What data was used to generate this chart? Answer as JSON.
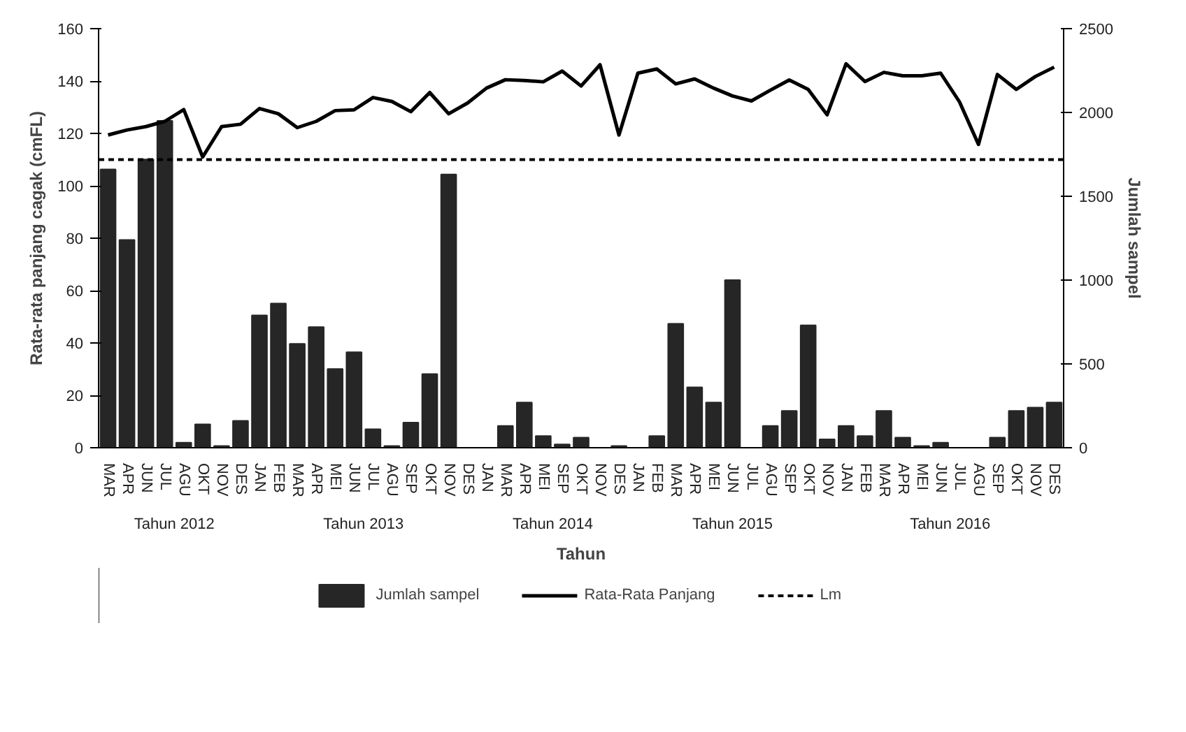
{
  "chart_data": {
    "type": "bar",
    "xlabel": "Tahun",
    "ylabel": "Rata-rata panjang cagak (cmFL)",
    "y2label": "Jumlah sampel",
    "categories": [
      "MAR",
      "APR",
      "JUN",
      "JUL",
      "AGU",
      "OKT",
      "NOV",
      "DES",
      "JAN",
      "FEB",
      "MAR",
      "APR",
      "MEI",
      "JUN",
      "JUL",
      "AGU",
      "SEP",
      "OKT",
      "NOV",
      "DES",
      "JAN",
      "MAR",
      "APR",
      "MEI",
      "SEP",
      "OKT",
      "NOV",
      "DES",
      "JAN",
      "FEB",
      "MAR",
      "APR",
      "MEI",
      "JUN",
      "JUL",
      "AGU",
      "SEP",
      "OKT",
      "NOV",
      "JAN",
      "FEB",
      "MAR",
      "APR",
      "MEI",
      "JUN",
      "JUL",
      "AGU",
      "SEP",
      "OKT",
      "NOV",
      "DES"
    ],
    "series": [
      {
        "name": "Jumlah sampel",
        "axis": "y2",
        "color": "#262626",
        "values": [
          1660,
          1240,
          1720,
          1950,
          30,
          140,
          10,
          160,
          790,
          860,
          620,
          720,
          470,
          570,
          110,
          10,
          150,
          440,
          1630,
          0,
          0,
          130,
          270,
          70,
          20,
          60,
          0,
          10,
          0,
          70,
          740,
          360,
          270,
          1000,
          0,
          130,
          220,
          730,
          50,
          130,
          70,
          220,
          60,
          10,
          30,
          0,
          0,
          60,
          220,
          240,
          270
        ]
      },
      {
        "name": "Rata-Rata Panjang",
        "type": "line",
        "color": "#000000",
        "values": [
          119.4,
          121.3,
          122.6,
          124.6,
          129.1,
          111,
          122.6,
          123.5,
          129.5,
          127.5,
          122.2,
          124.6,
          128.7,
          129,
          133.7,
          132.2,
          128.3,
          135.6,
          127.5,
          131.6,
          137.3,
          140.5,
          140.2,
          139.7,
          143.8,
          138.1,
          146.2,
          119.4,
          143,
          144.6,
          138.9,
          140.8,
          137.3,
          134.3,
          132.4,
          136.5,
          140.4,
          136.8,
          127.1,
          146.6,
          139.8,
          143.3,
          142,
          142,
          143,
          132,
          115.8,
          142.5,
          136.8,
          141.7,
          145.3
        ]
      }
    ],
    "ref_lines": [
      {
        "axis": "y",
        "value": 110,
        "label": "Lm",
        "color": "#000000",
        "line_style": "dashed"
      }
    ],
    "annotations": [
      "Tahun 2012",
      "Tahun 2013",
      "Tahun 2014",
      "Tahun 2015",
      "Tahun 2016"
    ],
    "ylim": [
      0,
      160
    ],
    "yticks": [
      0,
      20,
      40,
      60,
      80,
      100,
      120,
      140,
      160
    ],
    "y2lim": [
      0,
      2500
    ],
    "y2ticks": [
      0,
      500,
      1000,
      1500,
      2000,
      2500
    ],
    "grid": false,
    "legend": "bottom"
  }
}
